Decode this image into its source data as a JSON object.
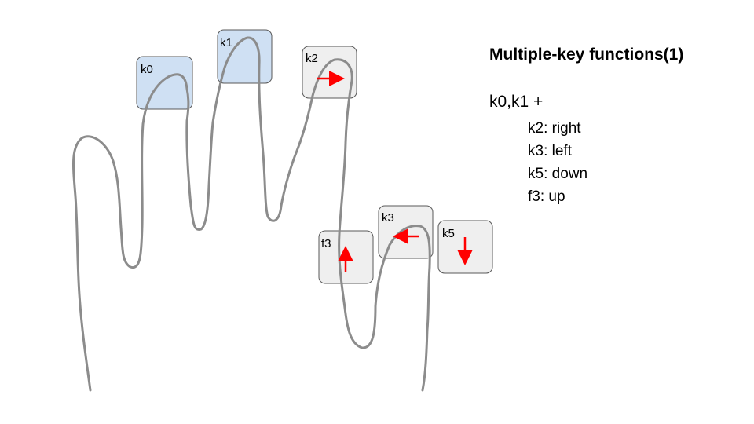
{
  "title": "Multiple-key functions(1)",
  "combo": "k0,k1 +",
  "functions": [
    {
      "text": "k2: right"
    },
    {
      "text": "k3: left"
    },
    {
      "text": "k5: down"
    },
    {
      "text": "f3: up"
    }
  ],
  "keys": {
    "k0": {
      "label": "k0",
      "active": true
    },
    "k1": {
      "label": "k1",
      "active": true
    },
    "k2": {
      "label": "k2",
      "arrow": "right"
    },
    "f3": {
      "label": "f3",
      "arrow": "up"
    },
    "k3": {
      "label": "k3",
      "arrow": "left"
    },
    "k5": {
      "label": "k5",
      "arrow": "down"
    }
  },
  "colors": {
    "active_key": "#cfe0f3",
    "key": "#efefef",
    "key_border": "#595959",
    "arrow": "#ff0000",
    "hand_outline": "#8c8c8c"
  }
}
